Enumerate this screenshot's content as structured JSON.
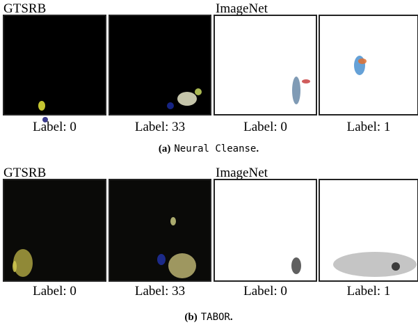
{
  "panels": [
    {
      "groups": [
        "GTSRB",
        "ImageNet"
      ],
      "images": [
        "Label: 0",
        "Label: 33",
        "Label: 0",
        "Label: 1"
      ],
      "caption": {
        "tag": "(a)",
        "method": "Neural Cleanse",
        "end": "."
      }
    },
    {
      "groups": [
        "GTSRB",
        "ImageNet"
      ],
      "images": [
        "Label: 0",
        "Label: 33",
        "Label: 0",
        "Label: 1"
      ],
      "caption": {
        "tag": "(b)",
        "method": "TABOR",
        "end": "."
      }
    }
  ]
}
